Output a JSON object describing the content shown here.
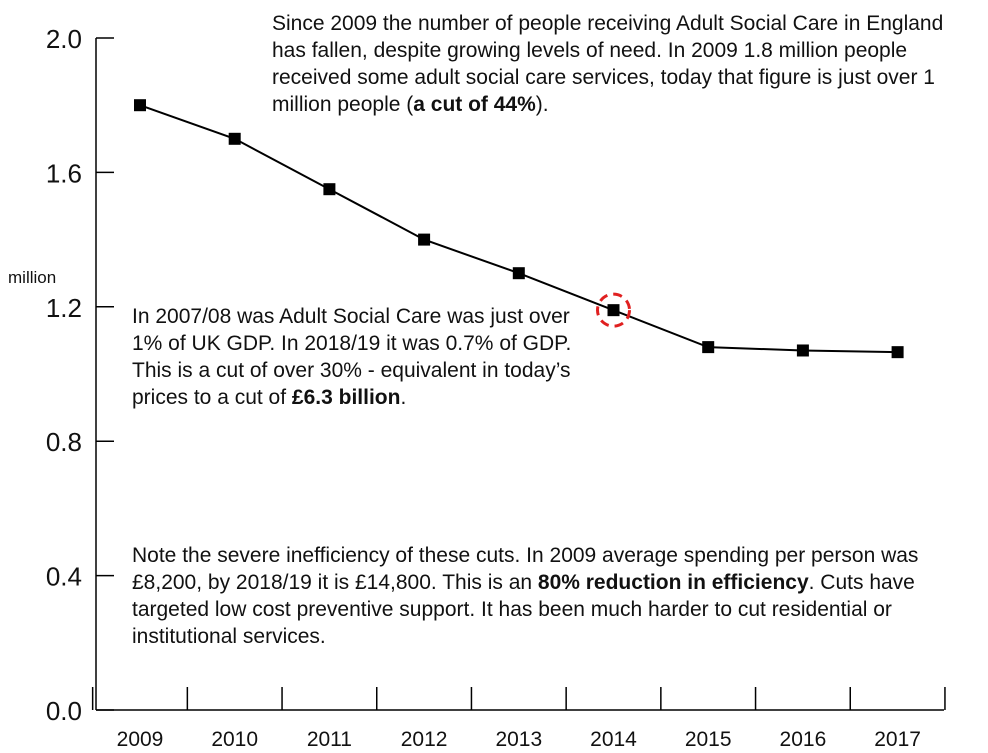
{
  "chart_data": {
    "type": "line",
    "x": [
      "2009",
      "2010",
      "2011",
      "2012",
      "2013",
      "2014",
      "2015",
      "2016",
      "2017"
    ],
    "series": [
      {
        "values": [
          1.8,
          1.7,
          1.55,
          1.4,
          1.3,
          1.19,
          1.08,
          1.07,
          1.065
        ]
      }
    ],
    "ylabel": "million",
    "yticks": [
      "0.0",
      "0.4",
      "0.8",
      "1.2",
      "1.6",
      "2.0"
    ],
    "ylim": [
      0,
      2.0
    ],
    "marker": "square",
    "line_color": "#000000",
    "highlight": {
      "x": "2014",
      "style": "dashed-circle",
      "color": "#e02020"
    }
  },
  "annotations": {
    "top": {
      "text": "Since 2009 the number of people receiving Adult Social Care in England has fallen, despite growing levels of need. In 2009 1.8 million people received some adult social care services, today that figure is just over 1 million people (",
      "bold": "a cut of 44%",
      "after": ")."
    },
    "middle": {
      "text": "In 2007/08 was Adult Social Care was just over 1% of UK GDP. In 2018/19 it was 0.7% of GDP. This is a cut of over 30% - equivalent in today’s prices to a cut of ",
      "bold": "£6.3 billion",
      "after": "."
    },
    "bottom": {
      "text": "Note the severe inefficiency of these cuts. In 2009 average spending per person was £8,200, by 2018/19 it is £14,800. This is an ",
      "bold": "80% reduction in efficiency",
      "after": ". Cuts have targeted low cost preventive support. It has been much harder to cut residential or institutional services."
    }
  }
}
